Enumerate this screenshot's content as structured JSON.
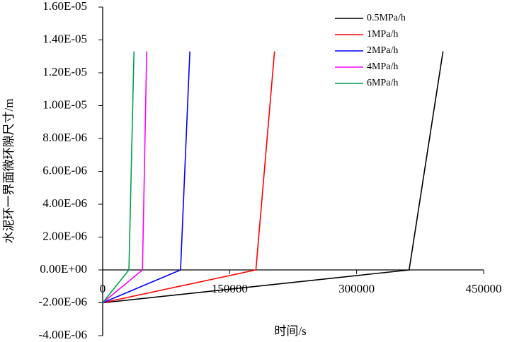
{
  "chart_data": {
    "type": "line",
    "x_label": "时间/s",
    "y_label": "水泥环一界面微环隙尺寸/m",
    "xlim": [
      0,
      450000
    ],
    "xticks": [
      0,
      150000,
      300000,
      450000
    ],
    "ylim": [
      -4e-06,
      1.6e-05
    ],
    "yticks": [
      {
        "value": -4e-06,
        "label": "-4.00E-06"
      },
      {
        "value": -2e-06,
        "label": "-2.00E-06"
      },
      {
        "value": 0,
        "label": "0.00E+00"
      },
      {
        "value": 2e-06,
        "label": "2.00E-06"
      },
      {
        "value": 4e-06,
        "label": "4.00E-06"
      },
      {
        "value": 6e-06,
        "label": "6.00E-06"
      },
      {
        "value": 8e-06,
        "label": "8.00E-06"
      },
      {
        "value": 1e-05,
        "label": "1.00E-05"
      },
      {
        "value": 1.2e-05,
        "label": "1.20E-05"
      },
      {
        "value": 1.4e-05,
        "label": "1.40E-05"
      },
      {
        "value": 1.6e-05,
        "label": "1.60E-05"
      }
    ],
    "legend": "upper right",
    "series": [
      {
        "name": "0.5MPa/h",
        "color": "#000000",
        "x": [
          0,
          362000,
          402000
        ],
        "values": [
          -2e-06,
          0,
          1.33e-05
        ]
      },
      {
        "name": "1MPa/h",
        "color": "#ff0000",
        "x": [
          0,
          181000,
          203000
        ],
        "values": [
          -2e-06,
          0,
          1.33e-05
        ]
      },
      {
        "name": "2MPa/h",
        "color": "#0000ff",
        "x": [
          0,
          92000,
          103000
        ],
        "values": [
          -2e-06,
          0,
          1.33e-05
        ]
      },
      {
        "name": "4MPa/h",
        "color": "#ff00ff",
        "x": [
          0,
          47000,
          52000
        ],
        "values": [
          -2e-06,
          0,
          1.33e-05
        ]
      },
      {
        "name": "6MPa/h",
        "color": "#00a050",
        "x": [
          0,
          31000,
          37000
        ],
        "values": [
          -2e-06,
          0,
          1.33e-05
        ]
      }
    ]
  }
}
